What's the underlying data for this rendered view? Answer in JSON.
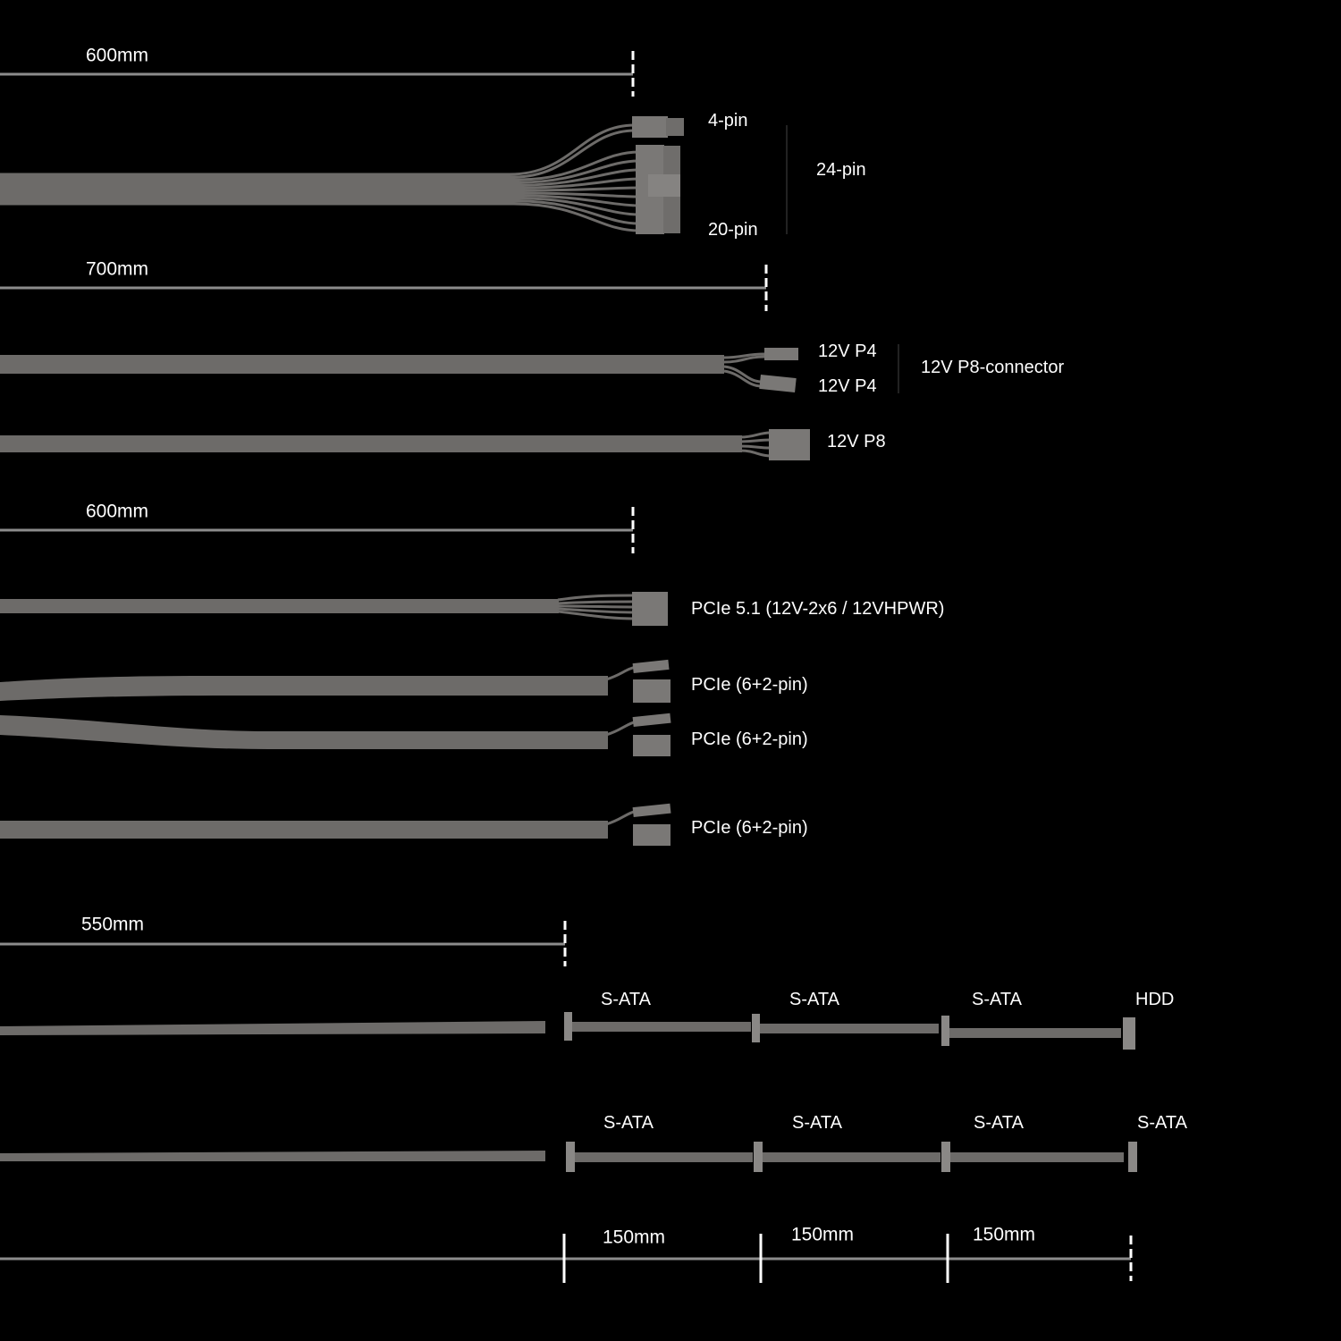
{
  "colors": {
    "background": "#000000",
    "cable": "#6d6b69",
    "connector": "#7a7876",
    "dimension_line": "#8c8c8c",
    "tick": "#ffffff",
    "text": "#ffffff"
  },
  "dimensions": {
    "d1": "600mm",
    "d2": "700mm",
    "d3": "600mm",
    "d4": "550mm",
    "seg1": "150mm",
    "seg2": "150mm",
    "seg3": "150mm"
  },
  "labels": {
    "pin4": "4-pin",
    "pin24": "24-pin",
    "pin20": "20-pin",
    "p4a": "12V P4",
    "p4b": "12V P4",
    "p8conn": "12V P8-connector",
    "p8": "12V P8",
    "pcie51": "PCIe 5.1 (12V-2x6 / 12VHPWR)",
    "pcie1": "PCIe (6+2-pin)",
    "pcie2": "PCIe (6+2-pin)",
    "pcie3": "PCIe (6+2-pin)",
    "sata_chain1": [
      "S-ATA",
      "S-ATA",
      "S-ATA",
      "HDD"
    ],
    "sata_chain2": [
      "S-ATA",
      "S-ATA",
      "S-ATA",
      "S-ATA"
    ]
  }
}
